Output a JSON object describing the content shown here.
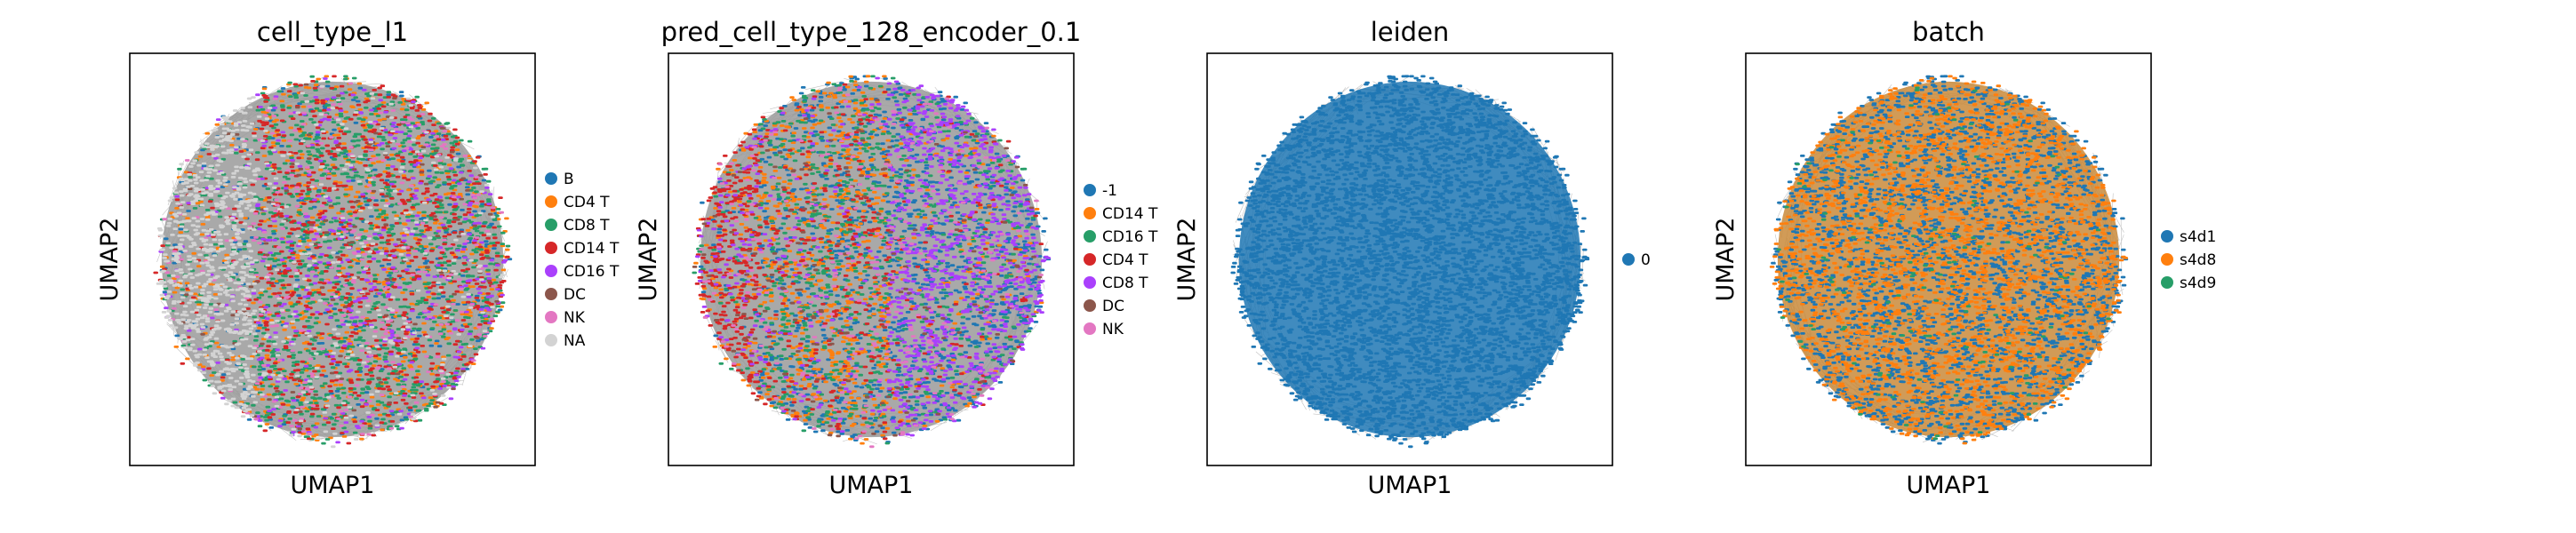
{
  "chart_data": [
    {
      "type": "scatter",
      "title": "cell_type_l1",
      "xlabel": "UMAP1",
      "ylabel": "UMAP2",
      "grid": false,
      "legend_placement": "right",
      "series": [
        {
          "name": "B",
          "color": "#1f77b4"
        },
        {
          "name": "CD4 T",
          "color": "#ff7f0e"
        },
        {
          "name": "CD8 T",
          "color": "#279e68"
        },
        {
          "name": "CD14 T",
          "color": "#d62728"
        },
        {
          "name": "CD16 T",
          "color": "#aa40fc"
        },
        {
          "name": "DC",
          "color": "#8c564b"
        },
        {
          "name": "NK",
          "color": "#e377c2"
        },
        {
          "name": "NA",
          "color": "#d3d3d3"
        }
      ]
    },
    {
      "type": "scatter",
      "title": "pred_cell_type_128_encoder_0.1",
      "xlabel": "UMAP1",
      "ylabel": "UMAP2",
      "grid": false,
      "legend_placement": "right",
      "series": [
        {
          "name": "-1",
          "color": "#1f77b4"
        },
        {
          "name": "CD14 T",
          "color": "#ff7f0e"
        },
        {
          "name": "CD16 T",
          "color": "#279e68"
        },
        {
          "name": "CD4 T",
          "color": "#d62728"
        },
        {
          "name": "CD8 T",
          "color": "#aa40fc"
        },
        {
          "name": "DC",
          "color": "#8c564b"
        },
        {
          "name": "NK",
          "color": "#e377c2"
        }
      ]
    },
    {
      "type": "scatter",
      "title": "leiden",
      "xlabel": "UMAP1",
      "ylabel": "UMAP2",
      "grid": false,
      "legend_placement": "right",
      "series": [
        {
          "name": "0",
          "color": "#1f77b4"
        }
      ]
    },
    {
      "type": "scatter",
      "title": "batch",
      "xlabel": "UMAP1",
      "ylabel": "UMAP2",
      "grid": false,
      "legend_placement": "right",
      "series": [
        {
          "name": "s4d1",
          "color": "#1f77b4"
        },
        {
          "name": "s4d8",
          "color": "#ff7f0e"
        },
        {
          "name": "s4d9",
          "color": "#279e68"
        }
      ]
    }
  ]
}
